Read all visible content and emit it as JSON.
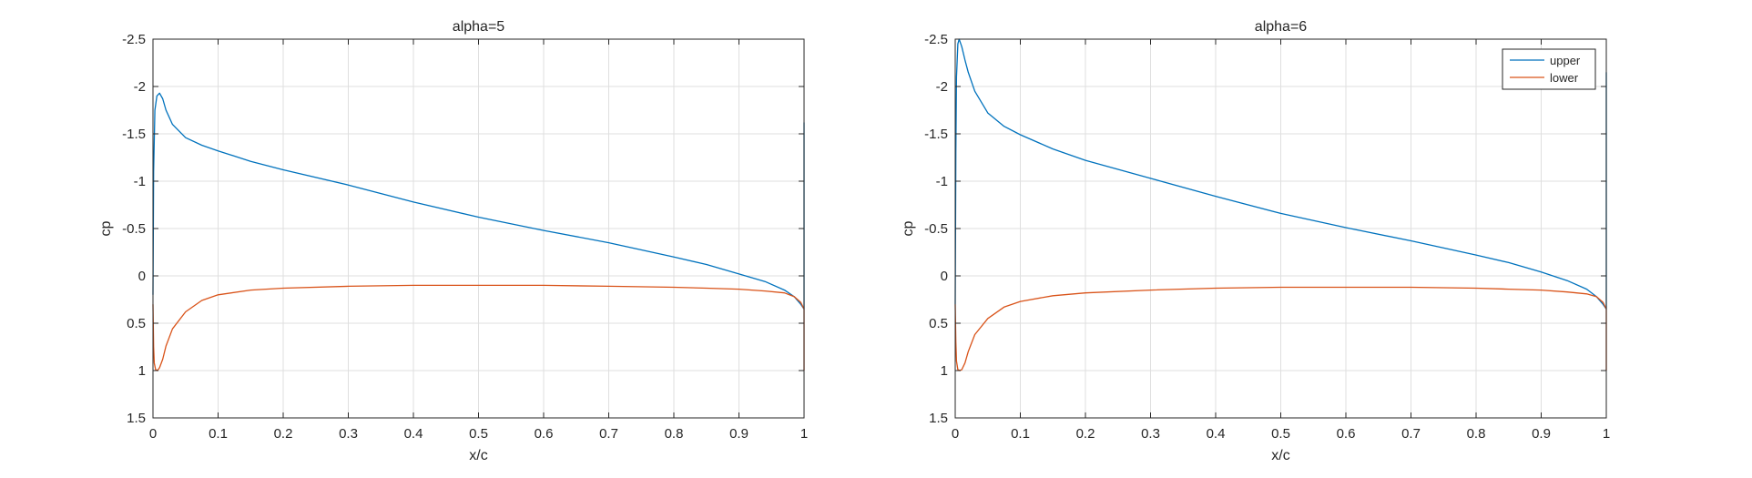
{
  "figure": {
    "background": "#ffffff",
    "axes_color": "#262626",
    "grid_color": "#dfdfdf"
  },
  "chart_data": [
    {
      "type": "line",
      "title": "alpha=5",
      "xlabel": "x/c",
      "ylabel": "cp",
      "xlim": [
        0,
        1
      ],
      "ylim": [
        1.5,
        -2.5
      ],
      "y_reversed": true,
      "grid": true,
      "legend": null,
      "x_ticks": [
        0,
        0.1,
        0.2,
        0.3,
        0.4,
        0.5,
        0.6,
        0.7,
        0.8,
        0.9,
        1
      ],
      "x_tick_labels": [
        "0",
        "0.1",
        "0.2",
        "0.3",
        "0.4",
        "0.5",
        "0.6",
        "0.7",
        "0.8",
        "0.9",
        "1"
      ],
      "y_ticks": [
        -2.5,
        -2,
        -1.5,
        -1,
        -0.5,
        0,
        0.5,
        1,
        1.5
      ],
      "y_tick_labels": [
        "-2.5",
        "-2",
        "-1.5",
        "-1",
        "-0.5",
        "0",
        "0.5",
        "1",
        "1.5"
      ],
      "series": [
        {
          "name": "upper",
          "color": "#0072BD",
          "x": [
            0,
            0.001,
            0.003,
            0.006,
            0.01,
            0.015,
            0.02,
            0.03,
            0.05,
            0.075,
            0.1,
            0.15,
            0.2,
            0.3,
            0.4,
            0.5,
            0.6,
            0.7,
            0.8,
            0.85,
            0.9,
            0.94,
            0.97,
            0.985,
            0.995,
            1,
            1,
            1
          ],
          "y": [
            0.2,
            -1.1,
            -1.75,
            -1.9,
            -1.93,
            -1.87,
            -1.75,
            -1.6,
            -1.46,
            -1.38,
            -1.32,
            -1.21,
            -1.12,
            -0.96,
            -0.78,
            -0.62,
            -0.48,
            -0.35,
            -0.2,
            -0.12,
            -0.02,
            0.06,
            0.15,
            0.22,
            0.3,
            0.35,
            -1.3,
            -1.62
          ]
        },
        {
          "name": "lower",
          "color": "#D95319",
          "x": [
            0,
            0.001,
            0.002,
            0.004,
            0.007,
            0.01,
            0.015,
            0.02,
            0.03,
            0.05,
            0.075,
            0.1,
            0.15,
            0.2,
            0.3,
            0.4,
            0.5,
            0.6,
            0.7,
            0.8,
            0.85,
            0.9,
            0.94,
            0.97,
            0.985,
            0.995,
            1,
            1
          ],
          "y": [
            0.3,
            0.75,
            0.92,
            0.99,
            1.0,
            0.97,
            0.88,
            0.74,
            0.56,
            0.38,
            0.26,
            0.2,
            0.15,
            0.13,
            0.11,
            0.1,
            0.1,
            0.1,
            0.11,
            0.12,
            0.13,
            0.14,
            0.16,
            0.18,
            0.22,
            0.28,
            0.35,
            1.0
          ]
        }
      ]
    },
    {
      "type": "line",
      "title": "alpha=6",
      "xlabel": "x/c",
      "ylabel": "cp",
      "xlim": [
        0,
        1
      ],
      "ylim": [
        1.5,
        -2.5
      ],
      "y_reversed": true,
      "grid": true,
      "legend": {
        "location": "top-right",
        "entries": [
          "upper",
          "lower"
        ]
      },
      "x_ticks": [
        0,
        0.1,
        0.2,
        0.3,
        0.4,
        0.5,
        0.6,
        0.7,
        0.8,
        0.9,
        1
      ],
      "x_tick_labels": [
        "0",
        "0.1",
        "0.2",
        "0.3",
        "0.4",
        "0.5",
        "0.6",
        "0.7",
        "0.8",
        "0.9",
        "1"
      ],
      "y_ticks": [
        -2.5,
        -2,
        -1.5,
        -1,
        -0.5,
        0,
        0.5,
        1,
        1.5
      ],
      "y_tick_labels": [
        "-2.5",
        "-2",
        "-1.5",
        "-1",
        "-0.5",
        "0",
        "0.5",
        "1",
        "1.5"
      ],
      "series": [
        {
          "name": "upper",
          "color": "#0072BD",
          "x": [
            0,
            0.001,
            0.002,
            0.004,
            0.006,
            0.01,
            0.015,
            0.02,
            0.03,
            0.05,
            0.075,
            0.1,
            0.15,
            0.2,
            0.3,
            0.4,
            0.5,
            0.6,
            0.7,
            0.8,
            0.85,
            0.9,
            0.94,
            0.97,
            0.985,
            0.995,
            1,
            1,
            1
          ],
          "y": [
            0.3,
            -1.3,
            -2.1,
            -2.45,
            -2.5,
            -2.42,
            -2.28,
            -2.15,
            -1.95,
            -1.72,
            -1.58,
            -1.49,
            -1.34,
            -1.22,
            -1.03,
            -0.84,
            -0.66,
            -0.51,
            -0.37,
            -0.22,
            -0.14,
            -0.04,
            0.05,
            0.14,
            0.22,
            0.3,
            0.35,
            -1.5,
            -2.15
          ]
        },
        {
          "name": "lower",
          "color": "#D95319",
          "x": [
            0,
            0.001,
            0.002,
            0.004,
            0.007,
            0.01,
            0.015,
            0.02,
            0.03,
            0.05,
            0.075,
            0.1,
            0.15,
            0.2,
            0.3,
            0.4,
            0.5,
            0.6,
            0.7,
            0.8,
            0.85,
            0.9,
            0.94,
            0.97,
            0.985,
            0.995,
            1,
            1
          ],
          "y": [
            0.3,
            0.7,
            0.9,
            0.99,
            1.0,
            0.99,
            0.92,
            0.8,
            0.62,
            0.45,
            0.33,
            0.27,
            0.21,
            0.18,
            0.15,
            0.13,
            0.12,
            0.12,
            0.12,
            0.13,
            0.14,
            0.15,
            0.17,
            0.19,
            0.22,
            0.28,
            0.35,
            1.0
          ]
        }
      ]
    }
  ]
}
